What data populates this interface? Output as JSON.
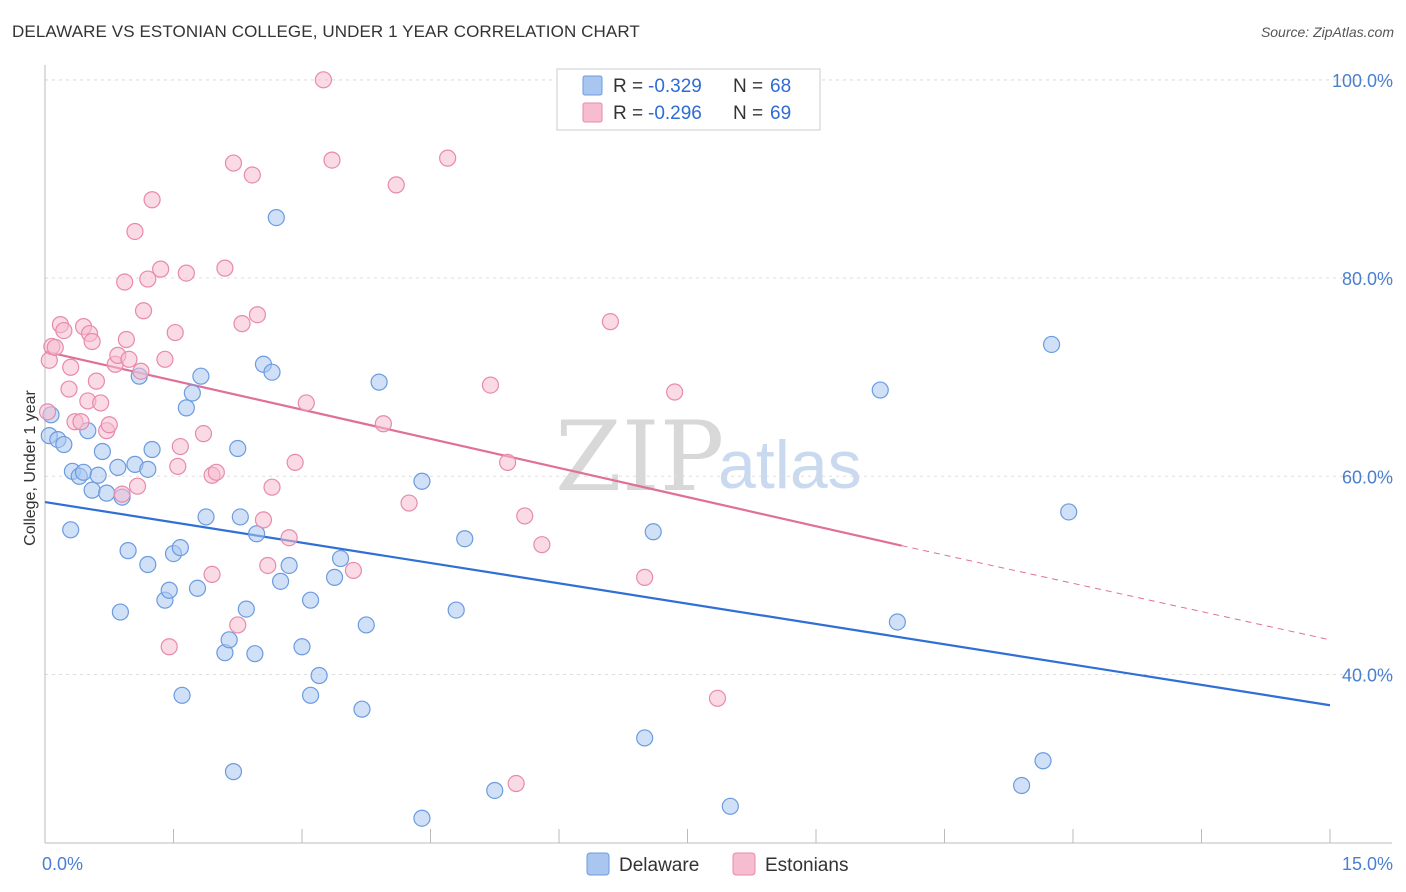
{
  "header": {
    "title": "DELAWARE VS ESTONIAN COLLEGE, UNDER 1 YEAR CORRELATION CHART",
    "source": "Source: ZipAtlas.com"
  },
  "watermark": {
    "part1": "ZIP",
    "part2": "atlas"
  },
  "colors": {
    "delaware_fill": "#a9c6f0",
    "delaware_stroke": "#6b9be0",
    "delaware_line": "#2f6fd6",
    "estonian_fill": "#f6bcd0",
    "estonian_stroke": "#e88aaa",
    "estonian_line": "#e0709a",
    "tick_text": "#4a7fd0",
    "grid": "#dddddd"
  },
  "legend": {
    "rows": [
      {
        "r_label": "R = ",
        "r_value": "-0.329",
        "n_label": "N = ",
        "n_value": "68"
      },
      {
        "r_label": "R = ",
        "r_value": "-0.296",
        "n_label": "N = ",
        "n_value": "69"
      }
    ],
    "bottom": [
      "Delaware",
      "Estonians"
    ]
  },
  "chart_data": {
    "type": "scatter",
    "title": "DELAWARE VS ESTONIAN COLLEGE, UNDER 1 YEAR CORRELATION CHART",
    "xlabel": "",
    "ylabel": "College, Under 1 year",
    "xlim": [
      0,
      15
    ],
    "ylim": [
      23,
      102
    ],
    "x_tick_labels": [
      "0.0%",
      "15.0%"
    ],
    "y_ticks": [
      40,
      60,
      80,
      100
    ],
    "y_tick_labels": [
      "40.0%",
      "60.0%",
      "80.0%",
      "100.0%"
    ],
    "grid": true,
    "legend_position": "top-center",
    "series": [
      {
        "name": "Delaware",
        "r": -0.329,
        "n": 68,
        "trend": {
          "x": [
            0,
            15
          ],
          "y": [
            57.4,
            36.9
          ]
        },
        "points": [
          [
            0.05,
            64.1
          ],
          [
            0.07,
            66.2
          ],
          [
            0.15,
            63.7
          ],
          [
            0.22,
            63.2
          ],
          [
            0.3,
            54.6
          ],
          [
            0.32,
            60.5
          ],
          [
            0.4,
            60.0
          ],
          [
            0.45,
            60.4
          ],
          [
            0.5,
            64.6
          ],
          [
            0.55,
            58.6
          ],
          [
            0.62,
            60.1
          ],
          [
            0.67,
            62.5
          ],
          [
            0.72,
            58.3
          ],
          [
            0.85,
            60.9
          ],
          [
            0.88,
            46.3
          ],
          [
            0.9,
            57.9
          ],
          [
            0.97,
            52.5
          ],
          [
            1.05,
            61.2
          ],
          [
            1.1,
            70.1
          ],
          [
            1.2,
            60.7
          ],
          [
            1.2,
            51.1
          ],
          [
            1.25,
            62.7
          ],
          [
            1.4,
            47.5
          ],
          [
            1.45,
            48.5
          ],
          [
            1.5,
            52.2
          ],
          [
            1.6,
            37.9
          ],
          [
            1.58,
            52.8
          ],
          [
            1.65,
            66.9
          ],
          [
            1.72,
            68.4
          ],
          [
            1.78,
            48.7
          ],
          [
            1.82,
            70.1
          ],
          [
            1.88,
            55.9
          ],
          [
            2.1,
            42.2
          ],
          [
            2.15,
            43.5
          ],
          [
            2.2,
            30.2
          ],
          [
            2.25,
            62.8
          ],
          [
            2.28,
            55.9
          ],
          [
            2.35,
            46.6
          ],
          [
            2.45,
            42.1
          ],
          [
            2.47,
            54.2
          ],
          [
            2.55,
            71.3
          ],
          [
            2.65,
            70.5
          ],
          [
            2.7,
            86.1
          ],
          [
            2.75,
            49.4
          ],
          [
            2.85,
            51.0
          ],
          [
            3.0,
            42.8
          ],
          [
            3.1,
            37.9
          ],
          [
            3.1,
            47.5
          ],
          [
            3.2,
            39.9
          ],
          [
            3.38,
            49.8
          ],
          [
            3.45,
            51.7
          ],
          [
            3.7,
            36.5
          ],
          [
            3.75,
            45.0
          ],
          [
            3.9,
            69.5
          ],
          [
            4.4,
            25.5
          ],
          [
            4.4,
            59.5
          ],
          [
            4.8,
            46.5
          ],
          [
            4.9,
            53.7
          ],
          [
            5.25,
            28.3
          ],
          [
            7.0,
            33.6
          ],
          [
            7.1,
            54.4
          ],
          [
            8.0,
            26.7
          ],
          [
            9.75,
            68.7
          ],
          [
            9.95,
            45.3
          ],
          [
            11.4,
            28.8
          ],
          [
            11.65,
            31.3
          ],
          [
            11.75,
            73.3
          ],
          [
            11.95,
            56.4
          ]
        ]
      },
      {
        "name": "Estonians",
        "r": -0.296,
        "n": 69,
        "trend": {
          "x": [
            0,
            10.0
          ],
          "y": [
            72.6,
            53.0
          ]
        },
        "trend_dashed": {
          "x": [
            10.0,
            15
          ],
          "y": [
            53.0,
            43.5
          ]
        },
        "points": [
          [
            0.03,
            66.5
          ],
          [
            0.05,
            71.7
          ],
          [
            0.08,
            73.1
          ],
          [
            0.12,
            73.0
          ],
          [
            0.18,
            75.3
          ],
          [
            0.22,
            74.7
          ],
          [
            0.28,
            68.8
          ],
          [
            0.3,
            71.0
          ],
          [
            0.35,
            65.5
          ],
          [
            0.42,
            65.5
          ],
          [
            0.45,
            75.1
          ],
          [
            0.5,
            67.6
          ],
          [
            0.52,
            74.4
          ],
          [
            0.55,
            73.6
          ],
          [
            0.6,
            69.6
          ],
          [
            0.65,
            67.4
          ],
          [
            0.72,
            64.6
          ],
          [
            0.75,
            65.2
          ],
          [
            0.82,
            71.3
          ],
          [
            0.85,
            72.2
          ],
          [
            0.9,
            58.2
          ],
          [
            0.93,
            79.6
          ],
          [
            0.95,
            73.8
          ],
          [
            0.98,
            71.8
          ],
          [
            1.05,
            84.7
          ],
          [
            1.08,
            59.0
          ],
          [
            1.12,
            70.6
          ],
          [
            1.15,
            76.7
          ],
          [
            1.2,
            79.9
          ],
          [
            1.25,
            87.9
          ],
          [
            1.35,
            80.9
          ],
          [
            1.4,
            71.8
          ],
          [
            1.45,
            42.8
          ],
          [
            1.52,
            74.5
          ],
          [
            1.55,
            61.0
          ],
          [
            1.58,
            63.0
          ],
          [
            1.65,
            80.5
          ],
          [
            1.85,
            64.3
          ],
          [
            1.95,
            60.1
          ],
          [
            1.95,
            50.1
          ],
          [
            2.0,
            60.4
          ],
          [
            2.1,
            81.0
          ],
          [
            2.2,
            91.6
          ],
          [
            2.25,
            45.0
          ],
          [
            2.3,
            75.4
          ],
          [
            2.42,
            90.4
          ],
          [
            2.48,
            76.3
          ],
          [
            2.55,
            55.6
          ],
          [
            2.6,
            51.0
          ],
          [
            2.65,
            58.9
          ],
          [
            2.85,
            53.8
          ],
          [
            2.92,
            61.4
          ],
          [
            3.05,
            67.4
          ],
          [
            3.25,
            100.0
          ],
          [
            3.35,
            91.9
          ],
          [
            3.6,
            50.5
          ],
          [
            3.95,
            65.3
          ],
          [
            4.1,
            89.4
          ],
          [
            4.25,
            57.3
          ],
          [
            4.7,
            92.1
          ],
          [
            5.2,
            69.2
          ],
          [
            5.4,
            61.4
          ],
          [
            5.5,
            29.0
          ],
          [
            5.6,
            56.0
          ],
          [
            5.8,
            53.1
          ],
          [
            6.6,
            75.6
          ],
          [
            7.0,
            49.8
          ],
          [
            7.35,
            68.5
          ],
          [
            7.85,
            37.6
          ]
        ]
      }
    ]
  }
}
